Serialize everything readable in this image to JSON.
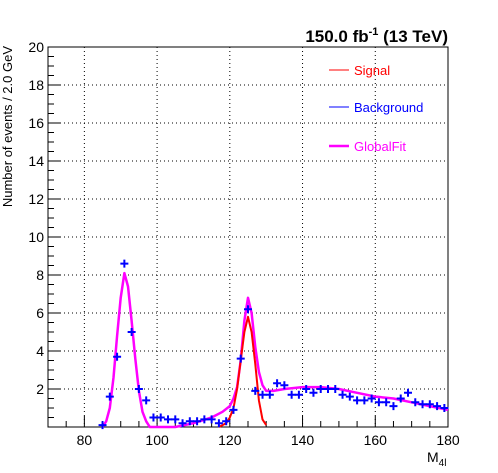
{
  "chart_data": {
    "type": "line",
    "lumi_label": {
      "main": "150.0 fb",
      "sup": "-1",
      "tail": " (13 TeV)"
    },
    "xlabel_main": "M",
    "xlabel_sub": "4l",
    "ylabel": "Number of events / 2.0 GeV",
    "xlim": [
      70,
      180
    ],
    "ylim": [
      0,
      20
    ],
    "xticks": [
      80,
      100,
      120,
      140,
      160,
      180
    ],
    "yticks": [
      2,
      4,
      6,
      8,
      10,
      12,
      14,
      16,
      18,
      20
    ],
    "grid": true,
    "legend_position": "top-right",
    "legend": [
      {
        "label": "Signal",
        "color": "#ff0000"
      },
      {
        "label": "Background",
        "color": "#0000ff"
      },
      {
        "label": "GlobalFit",
        "color": "#ff00ff"
      }
    ],
    "colors": {
      "signal": "#ff0000",
      "background": "#0000ff",
      "globalfit": "#ff00ff"
    },
    "series": [
      {
        "name": "Background",
        "kind": "points",
        "x": [
          85,
          87,
          89,
          91,
          93,
          95,
          97,
          99,
          101,
          103,
          105,
          107,
          109,
          111,
          113,
          115,
          117,
          119,
          121,
          123,
          125,
          127,
          129,
          131,
          133,
          135,
          137,
          139,
          141,
          143,
          145,
          147,
          149,
          151,
          153,
          155,
          157,
          159,
          161,
          163,
          165,
          167,
          169,
          171,
          173,
          175,
          177,
          179
        ],
        "y": [
          0.1,
          1.6,
          3.7,
          8.6,
          5.0,
          2.0,
          1.4,
          0.5,
          0.5,
          0.4,
          0.4,
          0.2,
          0.3,
          0.3,
          0.4,
          0.4,
          0.2,
          0.3,
          0.9,
          3.6,
          6.2,
          1.9,
          1.7,
          1.7,
          2.3,
          2.2,
          1.7,
          1.7,
          2.0,
          1.8,
          2.0,
          2.0,
          2.0,
          1.7,
          1.6,
          1.4,
          1.4,
          1.5,
          1.3,
          1.3,
          1.1,
          1.5,
          1.8,
          1.3,
          1.2,
          1.2,
          1.1,
          1.0
        ]
      },
      {
        "name": "Signal",
        "kind": "curve",
        "x": [
          117,
          118,
          119,
          120,
          121,
          122,
          123,
          124,
          125,
          126,
          127,
          128,
          129,
          130
        ],
        "y": [
          0.0,
          0.1,
          0.2,
          0.5,
          1.0,
          2.0,
          3.5,
          5.0,
          5.8,
          5.0,
          3.3,
          1.4,
          0.4,
          0.1
        ]
      },
      {
        "name": "GlobalFit",
        "kind": "curve",
        "x": [
          85,
          86,
          87,
          88,
          89,
          90,
          91,
          92,
          93,
          94,
          95,
          96,
          97,
          98,
          100,
          105,
          110,
          115,
          118,
          120,
          121,
          122,
          123,
          124,
          125,
          126,
          127,
          128,
          129,
          130,
          132,
          135,
          140,
          145,
          150,
          155,
          160,
          165,
          170,
          175,
          180
        ],
        "y": [
          0.0,
          0.3,
          1.0,
          2.6,
          4.8,
          6.8,
          8.1,
          7.4,
          5.6,
          3.6,
          1.9,
          0.8,
          0.3,
          0.0,
          0.0,
          0.0,
          0.2,
          0.5,
          0.8,
          1.1,
          1.5,
          2.1,
          3.5,
          5.6,
          6.8,
          6.0,
          4.2,
          2.9,
          2.2,
          1.9,
          1.9,
          2.0,
          2.1,
          2.1,
          2.0,
          1.8,
          1.6,
          1.5,
          1.3,
          1.1,
          0.9
        ]
      }
    ]
  }
}
